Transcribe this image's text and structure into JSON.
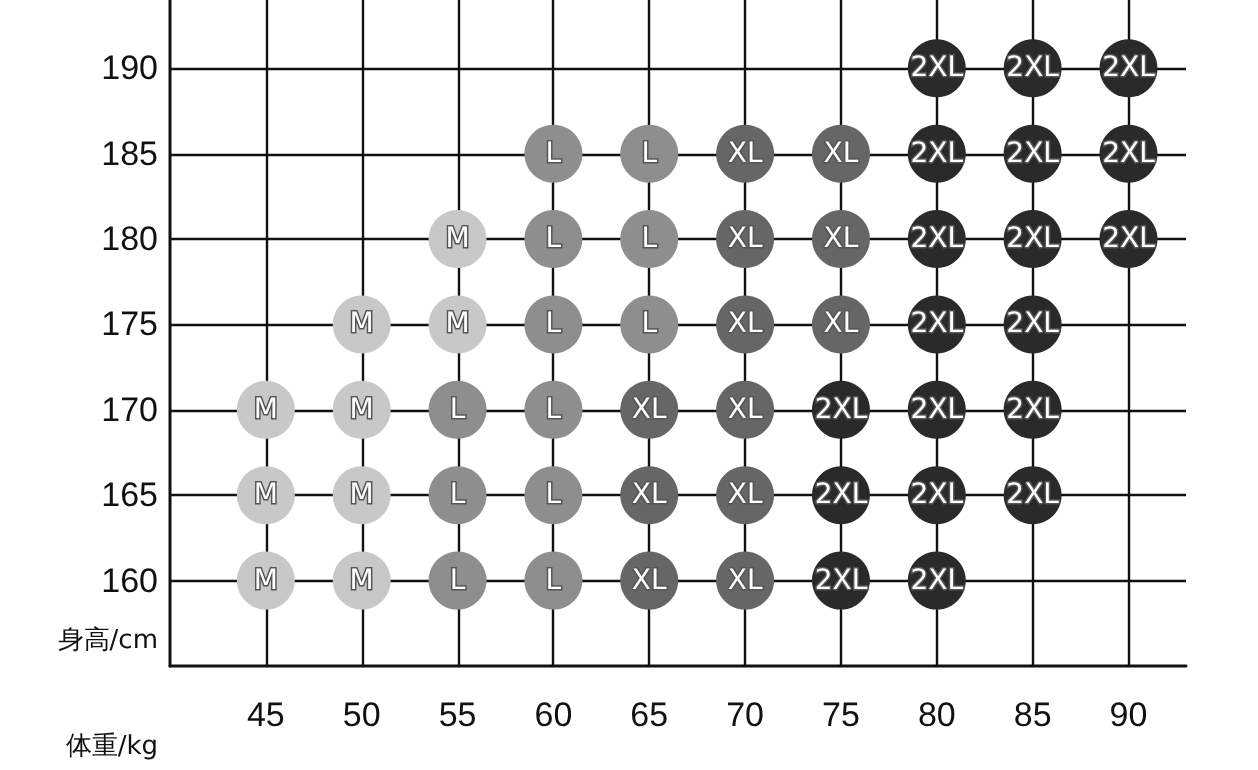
{
  "chart_data": {
    "type": "scatter",
    "xlabel": "体重/kg",
    "ylabel": "身高/cm",
    "xlim": [
      40,
      93
    ],
    "xticks": [
      45,
      50,
      55,
      60,
      65,
      70,
      75,
      80,
      85,
      90
    ],
    "ylim": [
      155,
      194
    ],
    "yticks": [
      160,
      165,
      170,
      175,
      180,
      185,
      190
    ],
    "grid": true,
    "marker": "circle",
    "series": [
      {
        "name": "M",
        "color": "#c8c8c8",
        "x": [
          55,
          50,
          55,
          45,
          50,
          45,
          50,
          45,
          50
        ],
        "values": [
          180,
          175,
          175,
          170,
          170,
          165,
          165,
          160,
          160
        ]
      },
      {
        "name": "L",
        "color": "#8e8e8e",
        "x": [
          60,
          65,
          60,
          65,
          60,
          65,
          55,
          60,
          55,
          60,
          55,
          60
        ],
        "values": [
          185,
          185,
          180,
          180,
          175,
          175,
          170,
          170,
          165,
          165,
          160,
          160
        ]
      },
      {
        "name": "XL",
        "color": "#666666",
        "x": [
          70,
          75,
          70,
          75,
          70,
          75,
          65,
          70,
          65,
          70,
          65,
          70
        ],
        "values": [
          185,
          185,
          180,
          180,
          175,
          175,
          170,
          170,
          165,
          165,
          160,
          160
        ]
      },
      {
        "name": "2XL",
        "color": "#2a2a2a",
        "x": [
          80,
          85,
          90,
          80,
          85,
          90,
          80,
          85,
          90,
          80,
          85,
          75,
          80,
          85,
          75,
          80,
          85,
          75,
          80
        ],
        "values": [
          190,
          190,
          190,
          185,
          185,
          185,
          180,
          180,
          180,
          175,
          175,
          170,
          170,
          170,
          165,
          165,
          165,
          160,
          160
        ]
      }
    ]
  }
}
